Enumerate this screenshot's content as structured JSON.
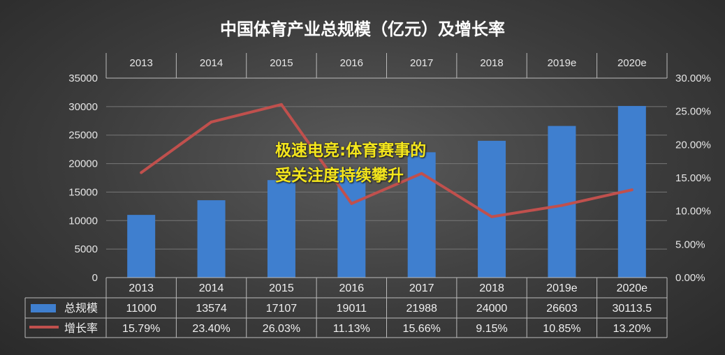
{
  "chart_data": {
    "type": "bar",
    "title": "中国体育产业总规模（亿元）及增长率",
    "categories": [
      "2013",
      "2014",
      "2015",
      "2016",
      "2017",
      "2018",
      "2019e",
      "2020e"
    ],
    "series": [
      {
        "name": "总规模",
        "type": "bar",
        "axis": "left",
        "values": [
          11000,
          13574,
          17107,
          19011,
          21988,
          24000,
          26603,
          30113.5
        ],
        "color": "#3f7fcf"
      },
      {
        "name": "增长率",
        "type": "line",
        "axis": "right",
        "values": [
          15.79,
          23.4,
          26.03,
          11.13,
          15.66,
          9.15,
          10.85,
          13.2
        ],
        "color": "#c0504d"
      }
    ],
    "y_left": {
      "min": 0,
      "max": 35000,
      "step": 5000
    },
    "y_right": {
      "min": 0,
      "max": 30,
      "step": 5,
      "unit": "%"
    },
    "left_ticks": [
      "0",
      "5000",
      "10000",
      "15000",
      "20000",
      "25000",
      "30000",
      "35000"
    ],
    "right_ticks": [
      "0.00%",
      "5.00%",
      "10.00%",
      "15.00%",
      "20.00%",
      "25.00%",
      "30.00%"
    ],
    "table": {
      "bar_row": [
        "11000",
        "13574",
        "17107",
        "19011",
        "21988",
        "24000",
        "26603",
        "30113.5"
      ],
      "line_row": [
        "15.79%",
        "23.40%",
        "26.03%",
        "11.13%",
        "15.66%",
        "9.15%",
        "10.85%",
        "13.20%"
      ]
    },
    "grid": true,
    "legend": "in data table"
  },
  "overlay": {
    "line1": "极速电竞:体育赛事的",
    "line2": "受关注度持续攀升",
    "color": "#f4e61c"
  }
}
